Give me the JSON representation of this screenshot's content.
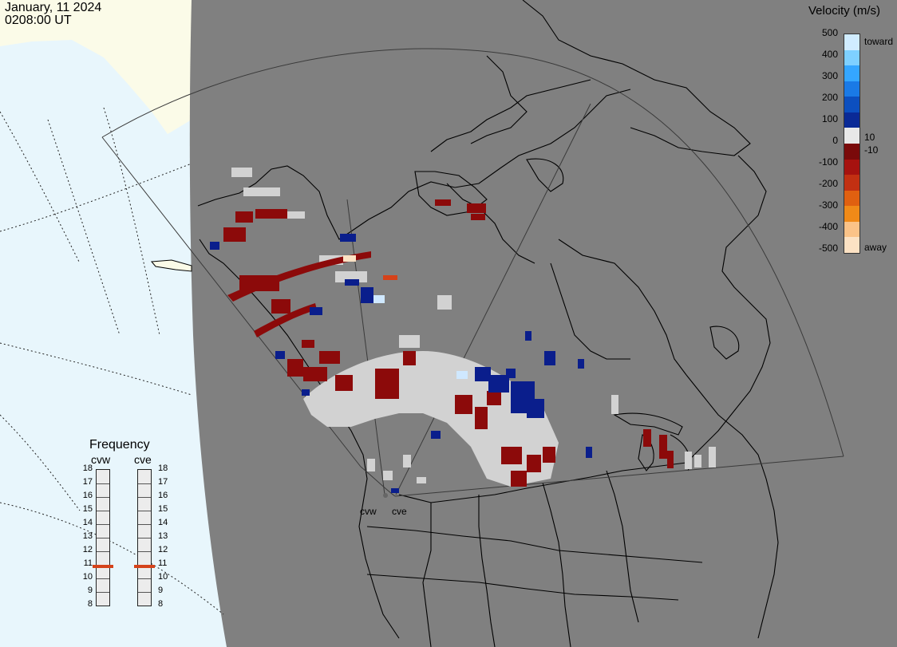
{
  "timestamp": {
    "date": "January, 11 2024",
    "time": "0208:00 UT"
  },
  "velocity_legend": {
    "title": "Velocity (m/s)",
    "ticks": [
      "500",
      "400",
      "300",
      "200",
      "100",
      "0",
      "-100",
      "-200",
      "-300",
      "-400",
      "-500"
    ],
    "toward_label": "toward",
    "away_label": "away",
    "pos_threshold_label": "10",
    "neg_threshold_label": "-10",
    "colors": [
      "#d0ecff",
      "#7ed0ff",
      "#34a6ff",
      "#1a7ae6",
      "#0c4fbf",
      "#0a2a96",
      "#e8e8e8",
      "#7a0a0a",
      "#a6120f",
      "#c23012",
      "#e06010",
      "#f08a18",
      "#fbc388",
      "#fce2c4"
    ]
  },
  "frequency": {
    "title": "Frequency",
    "radars": [
      {
        "name": "cvw",
        "mhz": 10.8
      },
      {
        "name": "cve",
        "mhz": 10.8
      }
    ],
    "scale": [
      "18",
      "17",
      "16",
      "15",
      "14",
      "13",
      "12",
      "11",
      "10",
      "9",
      "8"
    ]
  },
  "sites": [
    "cvw",
    "cve"
  ],
  "colors": {
    "land": "#808080",
    "ocean": "#e8f6fc",
    "snow": "#fbfbe8",
    "toward": "#0a1e8c",
    "away": "#8c0a0a",
    "ground": "#d2d2d2",
    "light_blue": "#cfe8ff",
    "orange": "#d5421a"
  }
}
